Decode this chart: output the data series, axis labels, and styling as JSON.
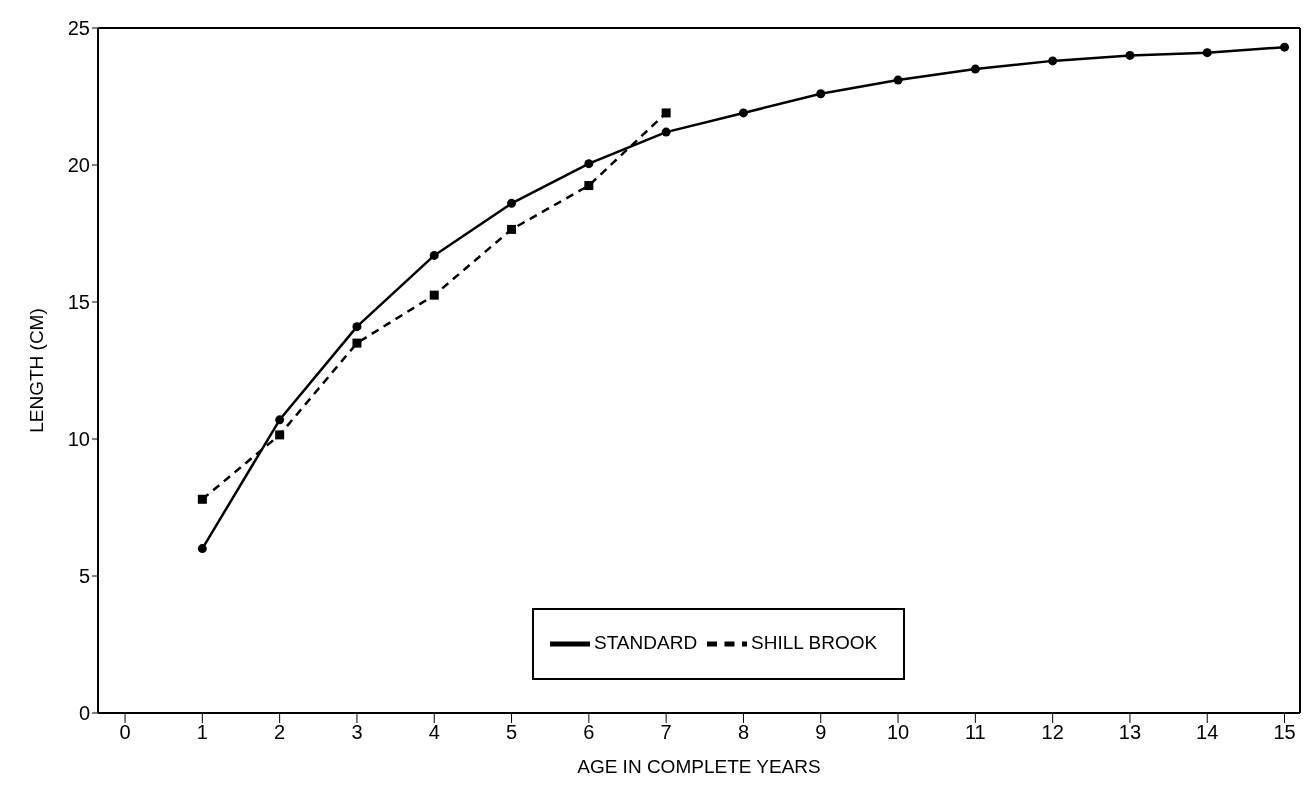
{
  "chart_data": {
    "type": "line",
    "xlabel": "AGE IN COMPLETE YEARS",
    "ylabel": "LENGTH (CM)",
    "xlim": [
      -0.35,
      15.2
    ],
    "xticks": [
      0,
      1,
      2,
      3,
      4,
      5,
      6,
      7,
      8,
      9,
      10,
      11,
      12,
      13,
      14,
      15
    ],
    "ylim": [
      0,
      25
    ],
    "yticks": [
      0,
      5,
      10,
      15,
      20,
      25
    ],
    "grid": false,
    "legend": "bottom",
    "series": [
      {
        "name": "STANDARD",
        "color": "#000000",
        "marker": "circle",
        "line_style": "solid",
        "x": [
          1,
          2,
          3,
          4,
          5,
          6,
          7,
          8,
          9,
          10,
          11,
          12,
          13,
          14,
          15
        ],
        "values": [
          6.0,
          10.7,
          14.1,
          16.7,
          18.6,
          20.05,
          21.2,
          21.9,
          22.6,
          23.1,
          23.5,
          23.8,
          24.0,
          24.1,
          24.3
        ]
      },
      {
        "name": "SHILL BROOK",
        "color": "#000000",
        "marker": "square",
        "line_style": "dashed",
        "x": [
          1,
          2,
          3,
          4,
          5,
          6,
          7
        ],
        "values": [
          7.8,
          10.15,
          13.5,
          15.25,
          17.65,
          19.25,
          21.9
        ]
      }
    ]
  }
}
